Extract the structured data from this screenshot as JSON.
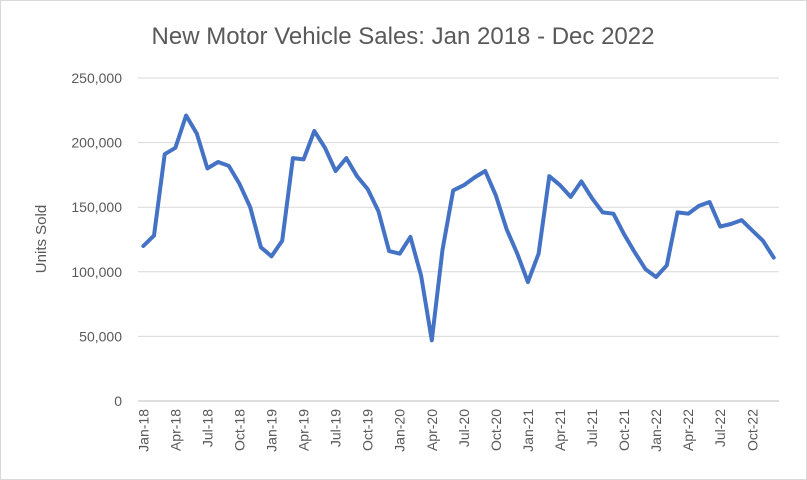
{
  "chart_data": {
    "type": "line",
    "title": "New Motor Vehicle Sales: Jan 2018 - Dec 2022",
    "xlabel": "",
    "ylabel": "Units Sold",
    "ylim": [
      0,
      250000
    ],
    "y_ticks": [
      0,
      50000,
      100000,
      150000,
      200000,
      250000
    ],
    "y_tick_labels": [
      "0",
      "50,000",
      "100,000",
      "150,000",
      "200,000",
      "250,000"
    ],
    "x_tick_labels": [
      "Jan-18",
      "Apr-18",
      "Jul-18",
      "Oct-18",
      "Jan-19",
      "Apr-19",
      "Jul-19",
      "Oct-19",
      "Jan-20",
      "Apr-20",
      "Jul-20",
      "Oct-20",
      "Jan-21",
      "Apr-21",
      "Jul-21",
      "Oct-21",
      "Jan-22",
      "Apr-22",
      "Jul-22",
      "Oct-22"
    ],
    "grid": true,
    "line_color": "#4472C4",
    "months": [
      "Jan-18",
      "Feb-18",
      "Mar-18",
      "Apr-18",
      "May-18",
      "Jun-18",
      "Jul-18",
      "Aug-18",
      "Sep-18",
      "Oct-18",
      "Nov-18",
      "Dec-18",
      "Jan-19",
      "Feb-19",
      "Mar-19",
      "Apr-19",
      "May-19",
      "Jun-19",
      "Jul-19",
      "Aug-19",
      "Sep-19",
      "Oct-19",
      "Nov-19",
      "Dec-19",
      "Jan-20",
      "Feb-20",
      "Mar-20",
      "Apr-20",
      "May-20",
      "Jun-20",
      "Jul-20",
      "Aug-20",
      "Sep-20",
      "Oct-20",
      "Nov-20",
      "Dec-20",
      "Jan-21",
      "Feb-21",
      "Mar-21",
      "Apr-21",
      "May-21",
      "Jun-21",
      "Jul-21",
      "Aug-21",
      "Sep-21",
      "Oct-21",
      "Nov-21",
      "Dec-21",
      "Jan-22",
      "Feb-22",
      "Mar-22",
      "Apr-22",
      "May-22",
      "Jun-22",
      "Jul-22",
      "Aug-22",
      "Sep-22",
      "Oct-22",
      "Nov-22",
      "Dec-22"
    ],
    "series": [
      {
        "values": [
          120000,
          128000,
          191000,
          196000,
          221000,
          207000,
          180000,
          185000,
          182000,
          168000,
          150000,
          119000,
          112000,
          124000,
          188000,
          187000,
          209000,
          196000,
          178000,
          188000,
          174000,
          164000,
          147000,
          116000,
          114000,
          127000,
          97000,
          47000,
          117000,
          163000,
          167000,
          173000,
          178000,
          159000,
          133000,
          114000,
          92000,
          114000,
          174000,
          167000,
          158000,
          170000,
          157000,
          146000,
          145000,
          129000,
          115000,
          102000,
          96000,
          105000,
          146000,
          145000,
          151000,
          154000,
          135000,
          137000,
          140000,
          132000,
          124000,
          111000
        ]
      }
    ]
  }
}
